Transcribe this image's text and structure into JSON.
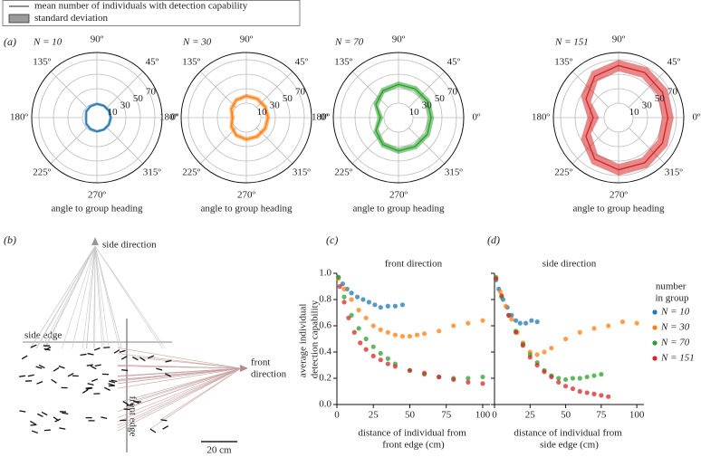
{
  "legend": {
    "mean": "mean number of individuals with detection capability",
    "sd": "standard deviation"
  },
  "panel_labels": [
    "(a)",
    "(b)",
    "(c)",
    "(d)"
  ],
  "diagram": {
    "side_direction": "side direction",
    "front_direction": "front direction",
    "side_edge": "side edge",
    "front_edge": "front edge",
    "scale": "20 cm"
  },
  "chart_data": [
    {
      "type": "polar",
      "title": "N = 10",
      "xlabel": "angle to group heading",
      "color": "#1f77b4",
      "theta": [
        0,
        30,
        60,
        90,
        120,
        150,
        180,
        210,
        240,
        270,
        300,
        330
      ],
      "values": [
        9,
        9,
        9,
        9,
        8,
        7,
        5,
        7,
        8,
        9,
        9,
        9
      ],
      "sd": [
        2,
        2,
        2,
        2,
        2,
        2,
        2,
        2,
        2,
        2,
        2,
        2
      ],
      "rlim": [
        -10,
        80
      ],
      "rticks": [
        10,
        30,
        50,
        70
      ],
      "thetaticks": [
        {
          "value": 0,
          "label": "0º"
        },
        {
          "value": 45,
          "label": "45º"
        },
        {
          "value": 90,
          "label": "90º"
        },
        {
          "value": 135,
          "label": "135º"
        },
        {
          "value": 180,
          "label": "180º"
        },
        {
          "value": 225,
          "label": "225º"
        },
        {
          "value": 270,
          "label": "270º"
        },
        {
          "value": 315,
          "label": "315º"
        }
      ]
    },
    {
      "type": "polar",
      "title": "N = 30",
      "xlabel": "angle to group heading",
      "color": "#ff7f0e",
      "theta": [
        0,
        30,
        60,
        90,
        120,
        150,
        180,
        210,
        240,
        270,
        300,
        330
      ],
      "values": [
        20,
        20,
        20,
        20,
        18,
        14,
        9,
        14,
        18,
        20,
        20,
        20
      ],
      "sd": [
        3,
        3,
        3,
        3,
        3,
        3,
        3,
        3,
        3,
        3,
        3,
        3
      ],
      "rlim": [
        -10,
        80
      ],
      "rticks": [
        10,
        30,
        50,
        70
      ],
      "thetaticks": [
        {
          "value": 0,
          "label": "0º"
        },
        {
          "value": 45,
          "label": "45º"
        },
        {
          "value": 90,
          "label": "90º"
        },
        {
          "value": 135,
          "label": "135º"
        },
        {
          "value": 180,
          "label": "180º"
        },
        {
          "value": 225,
          "label": "225º"
        },
        {
          "value": 270,
          "label": "270º"
        },
        {
          "value": 315,
          "label": "315º"
        }
      ]
    },
    {
      "type": "polar",
      "title": "N = 70",
      "xlabel": "angle to group heading",
      "color": "#2ca02c",
      "theta": [
        0,
        30,
        60,
        90,
        120,
        150,
        180,
        210,
        240,
        270,
        300,
        330
      ],
      "values": [
        35,
        36,
        36,
        36,
        33,
        26,
        15,
        26,
        33,
        36,
        36,
        36
      ],
      "sd": [
        4,
        4,
        4,
        4,
        4,
        4,
        4,
        4,
        4,
        4,
        4,
        4
      ],
      "rlim": [
        -10,
        80
      ],
      "rticks": [
        10,
        30,
        50,
        70
      ],
      "thetaticks": [
        {
          "value": 0,
          "label": "0º"
        },
        {
          "value": 45,
          "label": "45º"
        },
        {
          "value": 90,
          "label": "90º"
        },
        {
          "value": 135,
          "label": "135º"
        },
        {
          "value": 180,
          "label": "180º"
        },
        {
          "value": 225,
          "label": "225º"
        },
        {
          "value": 270,
          "label": "270º"
        },
        {
          "value": 315,
          "label": "315º"
        }
      ]
    },
    {
      "type": "polar",
      "title": "N = 151",
      "xlabel": "angle to group heading",
      "color": "#d62728",
      "theta": [
        0,
        30,
        60,
        90,
        120,
        150,
        180,
        210,
        240,
        270,
        300,
        330
      ],
      "values": [
        58,
        60,
        62,
        62,
        56,
        42,
        25,
        42,
        56,
        62,
        62,
        60
      ],
      "sd": [
        8,
        8,
        8,
        8,
        8,
        8,
        8,
        8,
        8,
        8,
        8,
        8
      ],
      "rlim": [
        -10,
        80
      ],
      "rticks": [
        10,
        30,
        50,
        70
      ],
      "thetaticks": [
        {
          "value": 0,
          "label": "0º"
        },
        {
          "value": 45,
          "label": "45º"
        },
        {
          "value": 90,
          "label": "90º"
        },
        {
          "value": 135,
          "label": "135º"
        },
        {
          "value": 180,
          "label": "180º"
        },
        {
          "value": 225,
          "label": "225º"
        },
        {
          "value": 270,
          "label": "270º"
        },
        {
          "value": 315,
          "label": "315º"
        }
      ]
    },
    {
      "type": "scatter",
      "title": "front direction",
      "xlabel": "distance of individual from front edge (cm)",
      "ylabel": "average individual detection capability",
      "xlim": [
        0,
        105
      ],
      "xticks": [
        0,
        25,
        50,
        75,
        100
      ],
      "ylim": [
        0,
        1
      ],
      "yticks": [
        {
          "value": 0,
          "label": "0.0"
        },
        0.2,
        0.4,
        0.6,
        0.8,
        {
          "value": 1,
          "label": "1.0"
        }
      ],
      "legend_title": "number in group",
      "series": [
        {
          "name": "N = 10",
          "color": "#1f77b4",
          "x": [
            1,
            4,
            7,
            10,
            14,
            18,
            22,
            26,
            30,
            35,
            40,
            45
          ],
          "values": [
            0.97,
            0.92,
            0.88,
            0.85,
            0.82,
            0.8,
            0.78,
            0.76,
            0.74,
            0.75,
            0.75,
            0.76
          ]
        },
        {
          "name": "N = 30",
          "color": "#ff7f0e",
          "x": [
            1,
            5,
            10,
            15,
            20,
            25,
            30,
            35,
            40,
            45,
            50,
            55,
            60,
            70,
            80,
            90,
            100
          ],
          "values": [
            0.96,
            0.88,
            0.8,
            0.72,
            0.66,
            0.6,
            0.57,
            0.55,
            0.53,
            0.52,
            0.52,
            0.53,
            0.54,
            0.56,
            0.6,
            0.62,
            0.64
          ]
        },
        {
          "name": "N = 70",
          "color": "#2ca02c",
          "x": [
            1,
            5,
            10,
            15,
            20,
            25,
            30,
            35,
            40,
            50,
            60,
            70,
            80,
            90,
            100
          ],
          "values": [
            0.97,
            0.82,
            0.68,
            0.58,
            0.5,
            0.44,
            0.39,
            0.35,
            0.31,
            0.26,
            0.23,
            0.21,
            0.2,
            0.2,
            0.21
          ]
        },
        {
          "name": "N = 151",
          "color": "#d62728",
          "x": [
            2,
            5,
            8,
            12,
            16,
            20,
            25,
            30,
            35,
            40,
            50,
            60,
            70,
            80,
            90,
            100
          ],
          "values": [
            0.9,
            0.78,
            0.66,
            0.55,
            0.47,
            0.42,
            0.37,
            0.34,
            0.31,
            0.29,
            0.26,
            0.24,
            0.21,
            0.19,
            0.17,
            0.16
          ]
        }
      ]
    },
    {
      "type": "scatter",
      "title": "side direction",
      "xlabel": "distance of individual from side edge (cm)",
      "xlim": [
        0,
        105
      ],
      "xticks": [
        0,
        25,
        50,
        75,
        100
      ],
      "ylim": [
        0,
        1
      ],
      "yticks": [
        0,
        0.2,
        0.4,
        0.6,
        0.8,
        1
      ],
      "series": [
        {
          "color": "#1f77b4",
          "x": [
            1,
            3,
            6,
            9,
            12,
            15,
            18,
            22,
            26,
            30
          ],
          "values": [
            0.95,
            0.88,
            0.8,
            0.74,
            0.68,
            0.64,
            0.62,
            0.62,
            0.64,
            0.63
          ]
        },
        {
          "color": "#ff7f0e",
          "x": [
            1,
            4,
            8,
            12,
            16,
            20,
            25,
            30,
            35,
            40,
            50,
            60,
            70,
            80,
            90,
            100
          ],
          "values": [
            0.96,
            0.86,
            0.75,
            0.65,
            0.55,
            0.47,
            0.4,
            0.38,
            0.4,
            0.43,
            0.5,
            0.55,
            0.58,
            0.6,
            0.63,
            0.62
          ]
        },
        {
          "color": "#2ca02c",
          "x": [
            1,
            5,
            10,
            15,
            20,
            25,
            30,
            35,
            40,
            45,
            50,
            55,
            60,
            65,
            70,
            75
          ],
          "values": [
            0.97,
            0.82,
            0.68,
            0.56,
            0.46,
            0.38,
            0.32,
            0.26,
            0.22,
            0.2,
            0.19,
            0.2,
            0.2,
            0.21,
            0.22,
            0.23
          ]
        },
        {
          "color": "#d62728",
          "x": [
            1,
            5,
            10,
            15,
            20,
            25,
            30,
            35,
            40,
            45,
            50,
            55,
            60,
            65,
            70,
            75,
            80
          ],
          "values": [
            0.96,
            0.83,
            0.68,
            0.55,
            0.45,
            0.36,
            0.3,
            0.25,
            0.21,
            0.17,
            0.14,
            0.12,
            0.1,
            0.09,
            0.08,
            0.07,
            0.06
          ]
        }
      ]
    }
  ]
}
